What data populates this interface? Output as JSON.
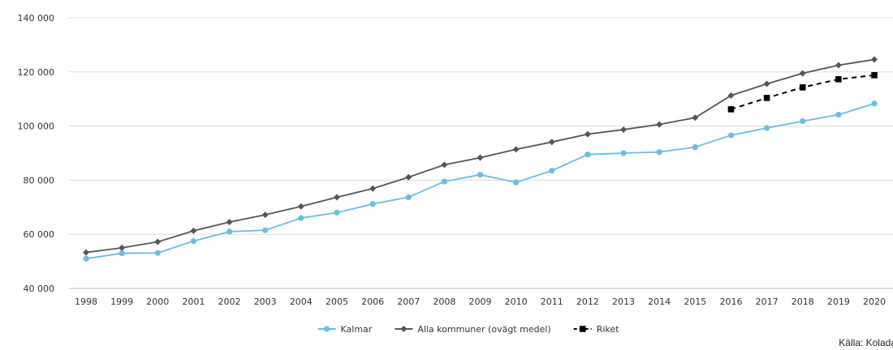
{
  "chart_data": {
    "type": "line",
    "title": "",
    "xlabel": "",
    "ylabel": "",
    "ylim": [
      40000,
      140000
    ],
    "y_ticks": [
      40000,
      60000,
      80000,
      100000,
      120000,
      140000
    ],
    "y_tick_labels": [
      "40 000",
      "60 000",
      "80 000",
      "100 000",
      "120 000",
      "140 000"
    ],
    "grid": true,
    "legend_position": "bottom-center",
    "categories": [
      "1998",
      "1999",
      "2000",
      "2001",
      "2002",
      "2003",
      "2004",
      "2005",
      "2006",
      "2007",
      "2008",
      "2009",
      "2010",
      "2011",
      "2012",
      "2013",
      "2014",
      "2015",
      "2016",
      "2017",
      "2018",
      "2019",
      "2020"
    ],
    "series": [
      {
        "name": "Kalmar",
        "color": "#6bbde3",
        "marker": "circle",
        "dash": false,
        "values": [
          51000,
          53000,
          53100,
          57500,
          61000,
          61500,
          66000,
          68000,
          71200,
          73700,
          79500,
          82000,
          79200,
          83500,
          89500,
          90000,
          90400,
          92200,
          96600,
          99300,
          101800,
          104200,
          108300
        ]
      },
      {
        "name": "Alla kommuner (ovägt medel)",
        "color": "#555555",
        "marker": "diamond",
        "dash": false,
        "values": [
          53300,
          55000,
          57200,
          61300,
          64500,
          67200,
          70300,
          73700,
          76900,
          81100,
          85700,
          88300,
          91400,
          94100,
          97000,
          98700,
          100600,
          103100,
          111300,
          115600,
          119500,
          122500,
          124600
        ]
      },
      {
        "name": "Riket",
        "color": "#000000",
        "marker": "square",
        "dash": true,
        "values": [
          null,
          null,
          null,
          null,
          null,
          null,
          null,
          null,
          null,
          null,
          null,
          null,
          null,
          null,
          null,
          null,
          null,
          null,
          106200,
          110400,
          114300,
          117300,
          118800
        ]
      }
    ]
  },
  "source_text": "Källa: Kolada"
}
